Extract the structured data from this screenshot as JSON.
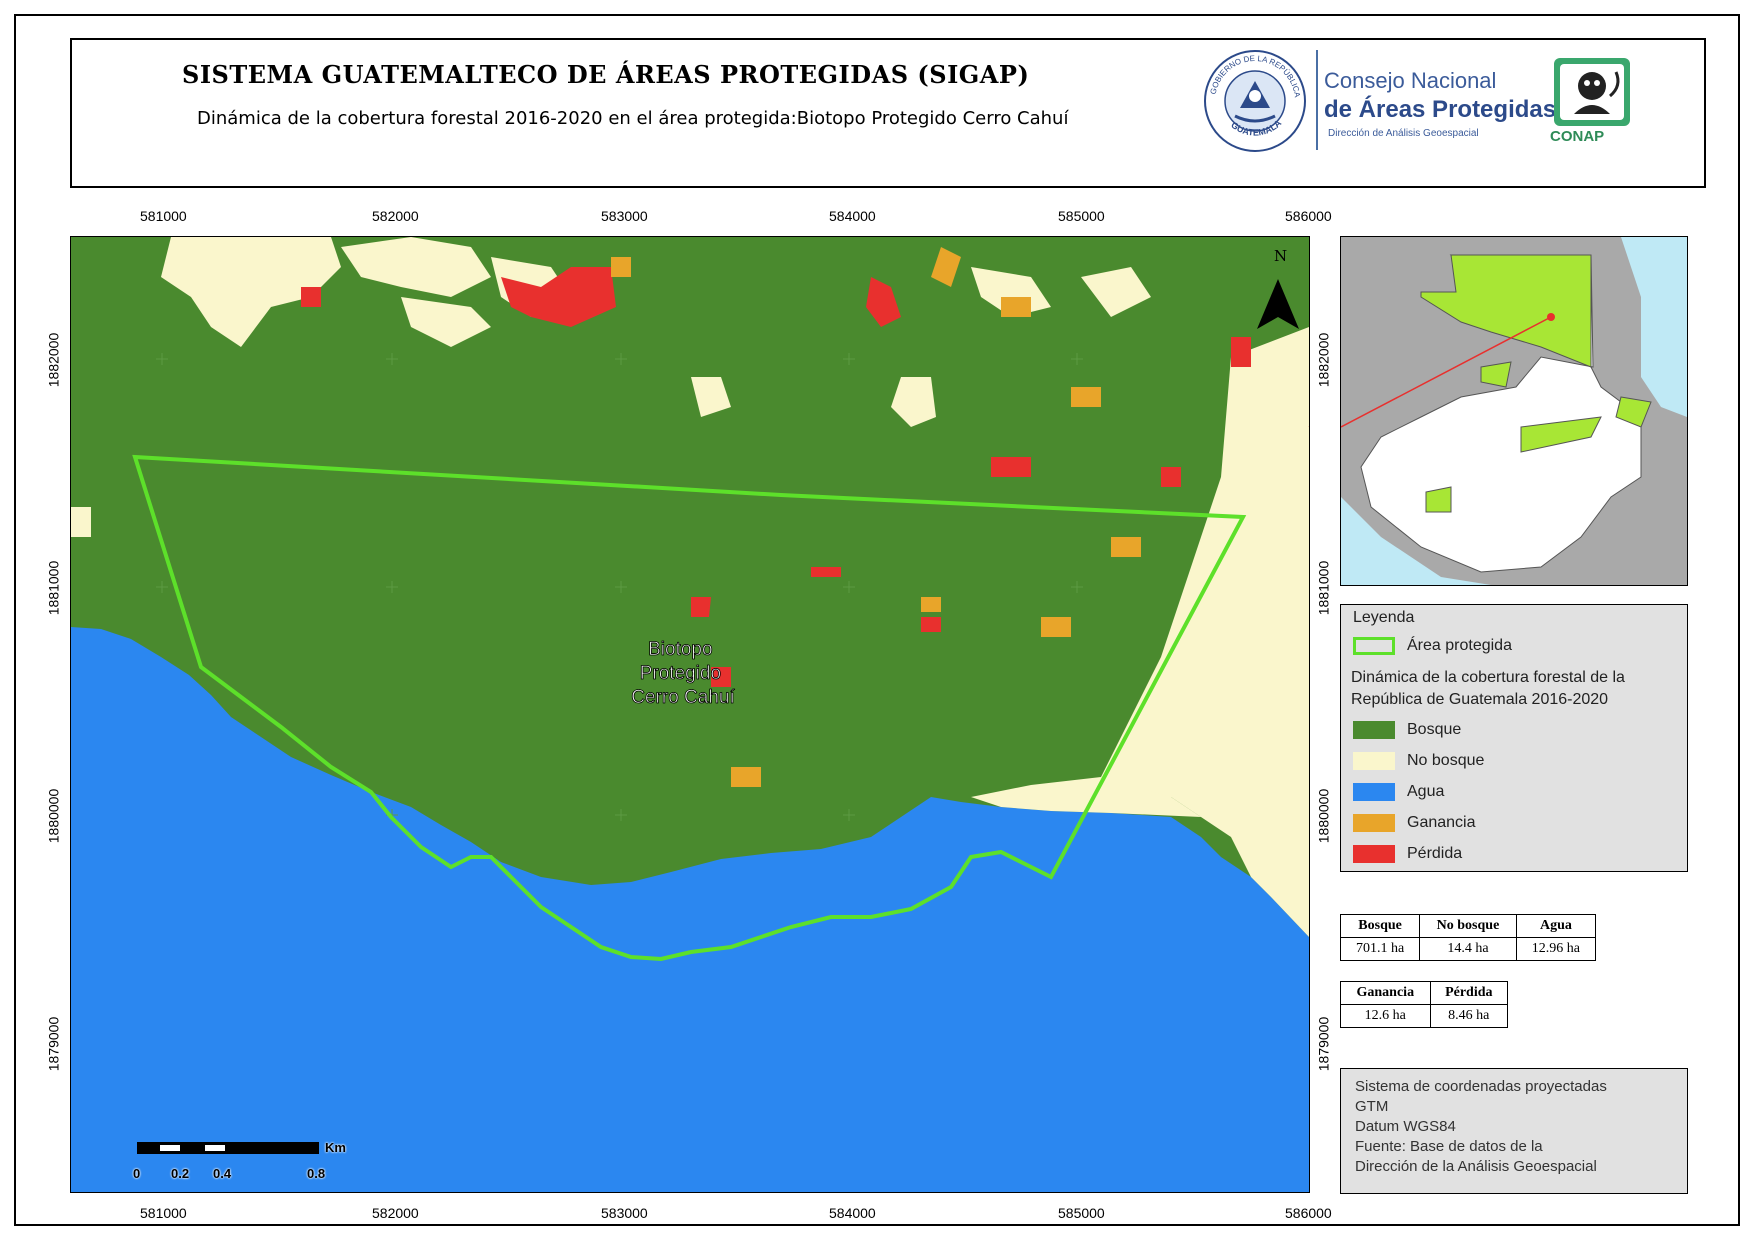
{
  "header": {
    "title": "SISTEMA GUATEMALTECO DE ÁREAS PROTEGIDAS  (SIGAP)",
    "subtitle": "Dinámica de la cobertura forestal 2016-2020 en el área protegida:Biotopo Protegido Cerro Cahuí",
    "seal_text_top": "GOBIERNO DE LA REPÚBLICA",
    "seal_text_bottom": "GUATEMALA",
    "org_line1": "Consejo Nacional",
    "org_line2": "de Áreas Protegidas",
    "org_line3": "Dirección de Análisis Geoespacial",
    "logo_label": "CONAP"
  },
  "map": {
    "area_label_lines": [
      "Biotopo",
      "Protegido",
      "Cerro Cahuí"
    ],
    "north_label": "N",
    "x_ticks": [
      "581000",
      "582000",
      "583000",
      "584000",
      "585000",
      "586000"
    ],
    "y_ticks": [
      "1882000",
      "1881000",
      "1880000",
      "1879000"
    ],
    "scale": {
      "unit": "Km",
      "labels": [
        "0",
        "0.2",
        "0.4",
        "0.8"
      ]
    }
  },
  "legend": {
    "title": "Leyenda",
    "protected_area_label": "Área protegida",
    "dynamics_title": "Dinámica de la cobertura forestal de la República de Guatemala 2016-2020",
    "items": [
      {
        "label": "Bosque",
        "color": "#4a8a2e"
      },
      {
        "label": "No bosque",
        "color": "#faf6cc"
      },
      {
        "label": "Agua",
        "color": "#2b87f0"
      },
      {
        "label": "Ganancia",
        "color": "#e8a52a"
      },
      {
        "label": "Pérdida",
        "color": "#e8302e"
      }
    ],
    "protected_area_color": "#5de02a"
  },
  "stats1": {
    "headers": [
      "Bosque",
      "No bosque",
      "Agua"
    ],
    "values": [
      "701.1 ha",
      "14.4 ha",
      "12.96 ha"
    ]
  },
  "stats2": {
    "headers": [
      "Ganancia",
      "Pérdida"
    ],
    "values": [
      "12.6 ha",
      "8.46 ha"
    ]
  },
  "coords_info": {
    "lines": [
      "Sistema de coordenadas proyectadas",
      "GTM",
      "Datum WGS84",
      "Fuente: Base de datos de la",
      "Dirección de la Análisis Geoespacial"
    ]
  }
}
